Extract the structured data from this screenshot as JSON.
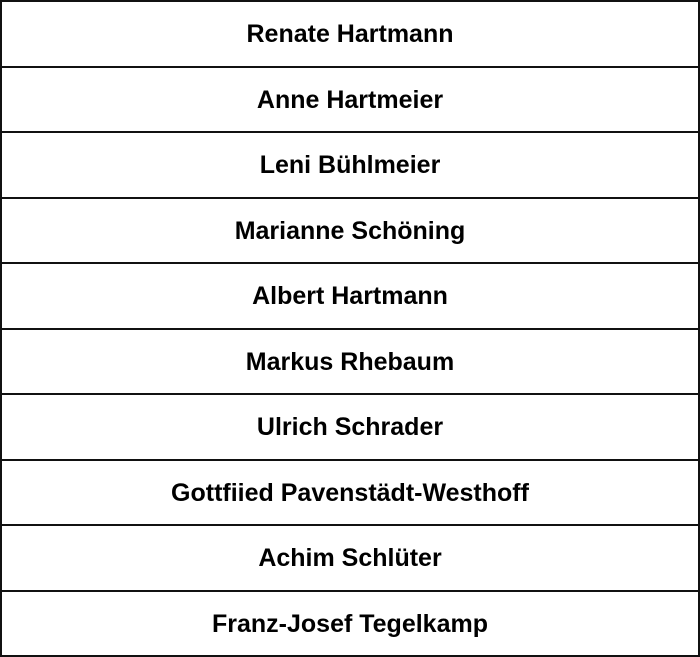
{
  "names": [
    "Renate Hartmann",
    "Anne Hartmeier",
    "Leni Bühlmeier",
    "Marianne Schöning",
    "Albert Hartmann",
    "Markus Rhebaum",
    "Ulrich Schrader",
    "Gottfiied Pavenstädt-Westhoff",
    "Achim Schlüter",
    "Franz-Josef Tegelkamp"
  ]
}
